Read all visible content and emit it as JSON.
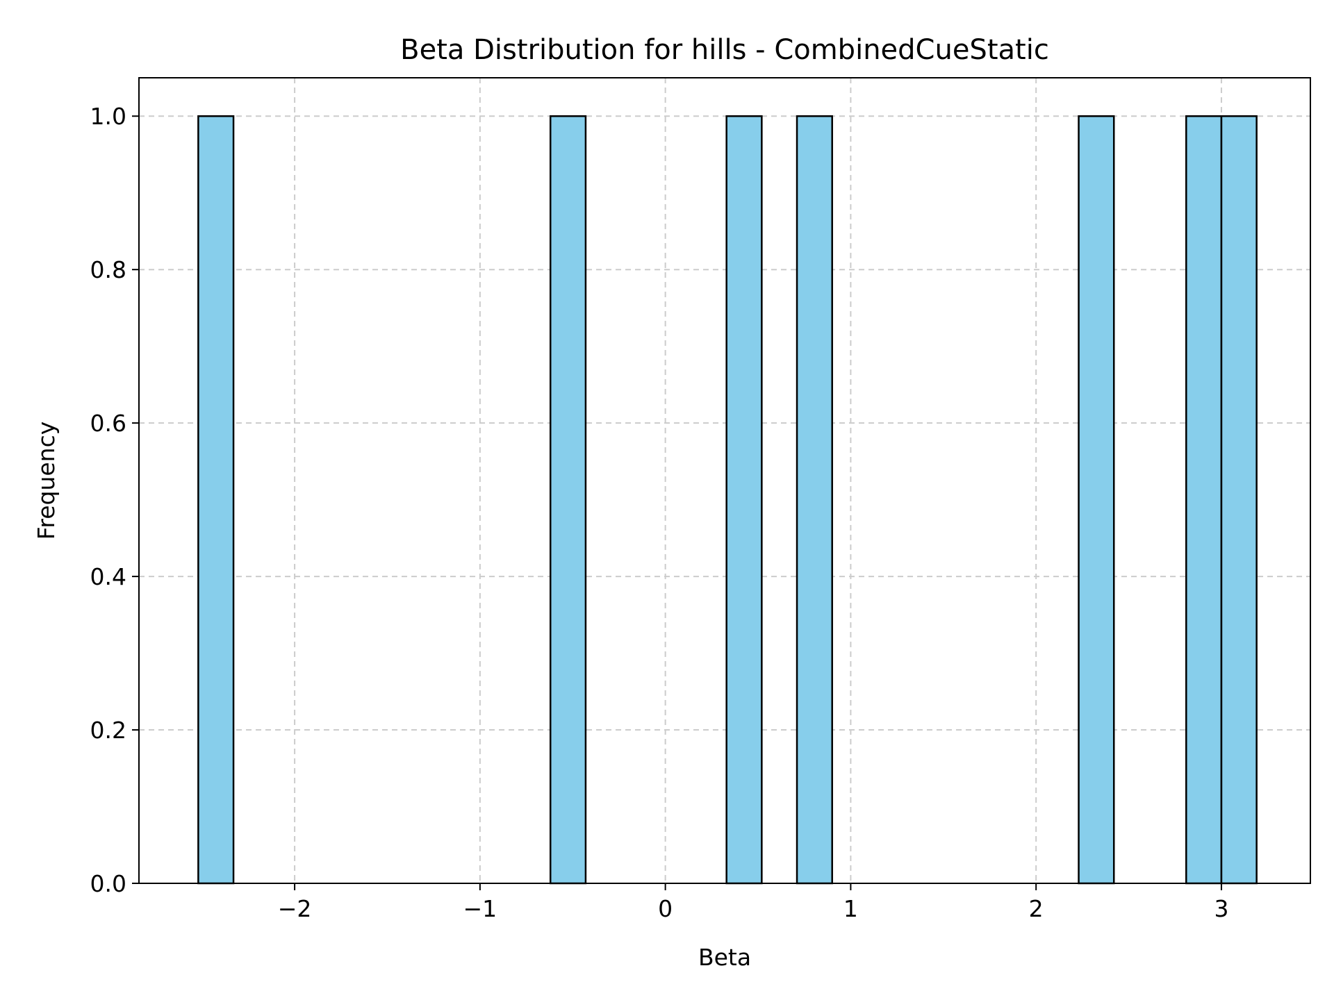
{
  "chart_data": {
    "type": "bar",
    "subtype": "histogram",
    "title": "Beta Distribution for hills - CombinedCueStatic",
    "xlabel": "Beta",
    "ylabel": "Frequency",
    "xlim": [
      -2.84,
      3.48
    ],
    "ylim": [
      0.0,
      1.05
    ],
    "xticks": [
      -2,
      -1,
      0,
      1,
      2,
      3
    ],
    "xtick_labels": [
      "−2",
      "−1",
      "0",
      "1",
      "2",
      "3"
    ],
    "yticks": [
      0.0,
      0.2,
      0.4,
      0.6,
      0.8,
      1.0
    ],
    "ytick_labels": [
      "0.0",
      "0.2",
      "0.4",
      "0.6",
      "0.8",
      "1.0"
    ],
    "grid": true,
    "grid_style": "dashed",
    "bar_color": "#87ceeb",
    "edge_color": "#000000",
    "bins": [
      {
        "x0": -2.52,
        "x1": -2.33,
        "count": 1
      },
      {
        "x0": -0.62,
        "x1": -0.43,
        "count": 1
      },
      {
        "x0": 0.33,
        "x1": 0.52,
        "count": 1
      },
      {
        "x0": 0.71,
        "x1": 0.9,
        "count": 1
      },
      {
        "x0": 2.23,
        "x1": 2.42,
        "count": 1
      },
      {
        "x0": 2.81,
        "x1": 3.0,
        "count": 1
      },
      {
        "x0": 3.0,
        "x1": 3.19,
        "count": 1
      }
    ]
  }
}
